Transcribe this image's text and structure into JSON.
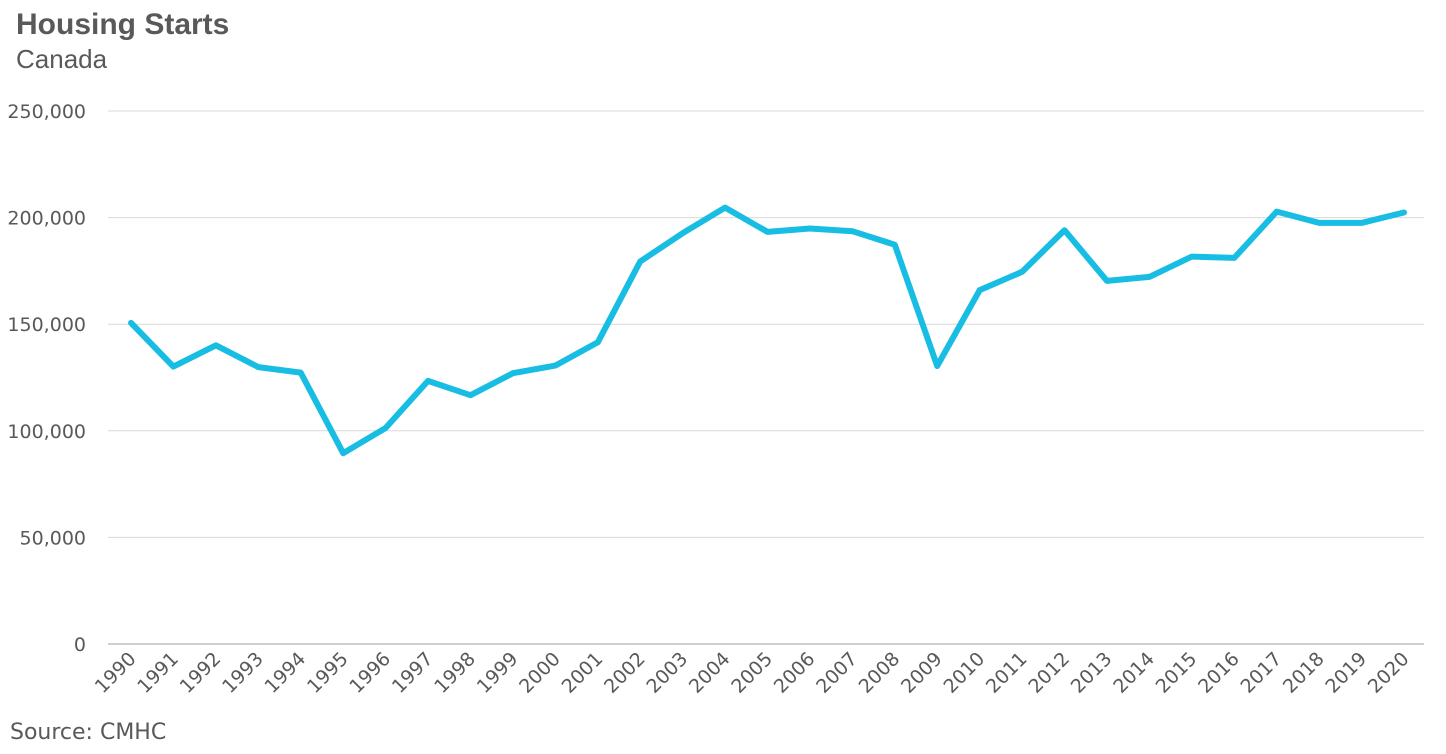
{
  "chart_data": {
    "type": "line",
    "title": "Housing Starts",
    "subtitle": "Canada",
    "source": "Source: CMHC",
    "xlabel": "",
    "ylabel": "",
    "ylim": [
      0,
      250000
    ],
    "yticks": [
      0,
      50000,
      100000,
      150000,
      200000,
      250000
    ],
    "ytick_labels": [
      "0",
      "50,000",
      "100,000",
      "150,000",
      "200,000",
      "250,000"
    ],
    "grid": true,
    "legend": "none",
    "categories": [
      "1990",
      "1991",
      "1992",
      "1993",
      "1994",
      "1995",
      "1996",
      "1997",
      "1998",
      "1999",
      "2000",
      "2001",
      "2002",
      "2003",
      "2004",
      "2005",
      "2006",
      "2007",
      "2008",
      "2009",
      "2010",
      "2011",
      "2012",
      "2013",
      "2014",
      "2015",
      "2016",
      "2017",
      "2018",
      "2019",
      "2020"
    ],
    "series": [
      {
        "color": "#18BDE3",
        "values": [
          150600,
          130100,
          140100,
          129900,
          127300,
          89500,
          101300,
          123400,
          116700,
          127000,
          130600,
          141500,
          179400,
          192700,
          204700,
          193300,
          194900,
          193600,
          187300,
          130400,
          166000,
          174600,
          194100,
          170300,
          172200,
          181700,
          181100,
          202800,
          197500,
          197500,
          202400
        ]
      }
    ]
  }
}
